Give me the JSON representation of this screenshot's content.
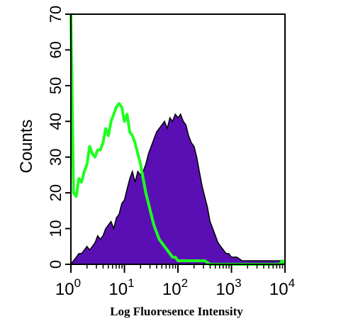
{
  "chart_data": {
    "type": "area",
    "xscale": "log",
    "xlim": [
      1,
      10000
    ],
    "ylim": [
      0,
      70
    ],
    "xlabel": "Log Fluoresence Intensity",
    "ylabel": "Counts",
    "yticks": [
      0,
      10,
      20,
      30,
      40,
      50,
      60,
      70
    ],
    "xticks": [
      {
        "value": 1,
        "base": "10",
        "exp": "0"
      },
      {
        "value": 10,
        "base": "10",
        "exp": "1"
      },
      {
        "value": 100,
        "base": "10",
        "exp": "2"
      },
      {
        "value": 1000,
        "base": "10",
        "exp": "3"
      },
      {
        "value": 10000,
        "base": "10",
        "exp": "4"
      }
    ],
    "grid": false,
    "legend": "none",
    "series": [
      {
        "style": "filled",
        "color": "#5a0fb4",
        "x": [
          1,
          1.12,
          1.26,
          1.41,
          1.58,
          1.78,
          2.0,
          2.24,
          2.51,
          2.82,
          3.16,
          3.55,
          3.98,
          4.47,
          5.01,
          5.62,
          6.31,
          7.08,
          7.94,
          8.91,
          10.0,
          11.2,
          12.6,
          14.1,
          15.8,
          17.8,
          20.0,
          22.4,
          25.1,
          28.2,
          31.6,
          35.5,
          39.8,
          44.7,
          50.1,
          56.2,
          63.1,
          70.8,
          79.4,
          89.1,
          100,
          112,
          126,
          141,
          158,
          178,
          200,
          224,
          251,
          282,
          316,
          355,
          398,
          447,
          501,
          562,
          631,
          708,
          794,
          891,
          1000,
          1260,
          1580,
          2000,
          2510,
          3160,
          3980,
          5010,
          6310,
          7940,
          8910,
          10000
        ],
        "y": [
          0,
          1,
          2,
          3,
          3,
          4,
          5,
          4,
          5,
          6,
          8,
          7,
          8,
          10,
          11,
          12,
          10,
          13,
          14,
          17,
          18,
          21,
          24,
          26,
          23,
          26,
          25,
          26,
          28,
          31,
          33,
          35,
          37,
          38,
          39,
          40,
          38,
          41,
          40,
          42,
          41,
          42,
          40,
          39,
          36,
          34,
          33,
          30,
          26,
          22,
          19,
          16,
          12,
          10,
          8,
          6,
          5,
          4,
          3,
          3,
          2,
          2,
          1,
          1,
          1,
          1,
          1,
          1,
          1,
          1,
          1,
          0
        ]
      },
      {
        "style": "line",
        "color": "#1dff1d",
        "x": [
          1,
          1.12,
          1.26,
          1.41,
          1.58,
          1.78,
          2.0,
          2.24,
          2.51,
          2.82,
          3.16,
          3.55,
          3.98,
          4.47,
          5.01,
          5.62,
          6.31,
          7.08,
          7.94,
          8.91,
          10.0,
          11.2,
          12.6,
          14.1,
          15.8,
          17.8,
          20.0,
          22.4,
          25.1,
          28.2,
          31.6,
          35.5,
          39.8,
          44.7,
          50.1,
          56.2,
          63.1,
          70.8,
          79.4,
          89.1,
          100,
          126,
          158,
          200,
          251,
          316,
          398,
          501,
          631,
          794,
          1000,
          1580,
          2510,
          3980,
          6310,
          7940,
          8910,
          10000
        ],
        "y": [
          70,
          20,
          19,
          24,
          23,
          26,
          28,
          33,
          31,
          30,
          32,
          32,
          34,
          38,
          36,
          40,
          42,
          44,
          45,
          44,
          40,
          42,
          37,
          36,
          34,
          31,
          28,
          24,
          20,
          17,
          14,
          11,
          9,
          7,
          6,
          5,
          4,
          3,
          2,
          2,
          1,
          1,
          1,
          1,
          1,
          1,
          0,
          0,
          0,
          0,
          0,
          0,
          0,
          0,
          0,
          0,
          1,
          0
        ]
      }
    ]
  }
}
